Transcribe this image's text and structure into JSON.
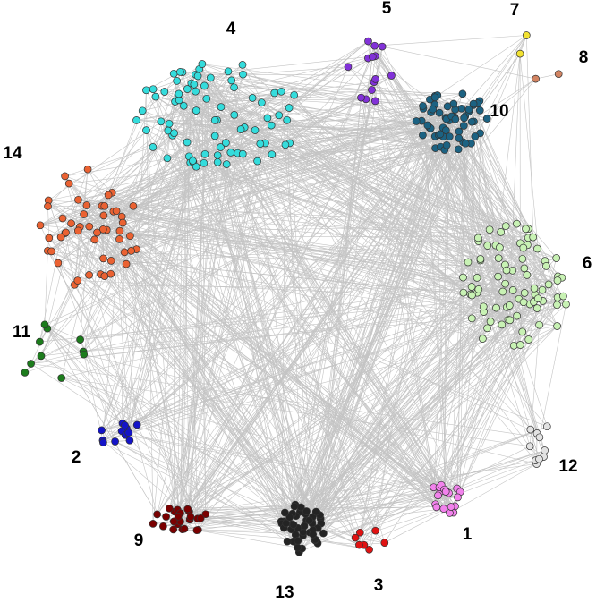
{
  "clusters": [
    {
      "label": "1",
      "color": "#f282ec"
    },
    {
      "label": "2",
      "color": "#1414c8"
    },
    {
      "label": "3",
      "color": "#e01212"
    },
    {
      "label": "4",
      "color": "#34dcdc"
    },
    {
      "label": "5",
      "color": "#8232d8"
    },
    {
      "label": "6",
      "color": "#c8f2b4"
    },
    {
      "label": "7",
      "color": "#f2e232"
    },
    {
      "label": "8",
      "color": "#d28462"
    },
    {
      "label": "9",
      "color": "#7a0000"
    },
    {
      "label": "10",
      "color": "#1c6282"
    },
    {
      "label": "11",
      "color": "#1c7c1c"
    },
    {
      "label": "12",
      "color": "#e2e2e2"
    },
    {
      "label": "13",
      "color": "#242424"
    },
    {
      "label": "14",
      "color": "#ea6232"
    }
  ]
}
